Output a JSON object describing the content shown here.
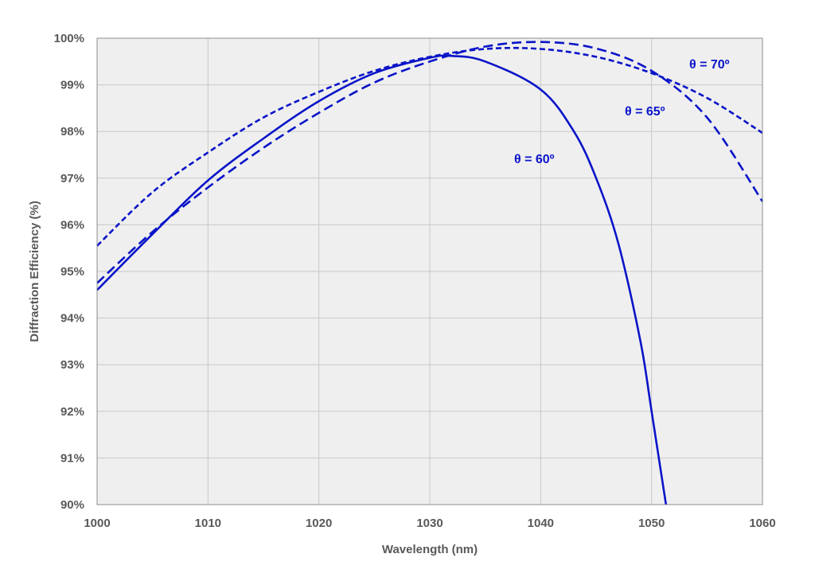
{
  "chart_data": {
    "type": "line",
    "xlabel": "Wavelength (nm)",
    "ylabel": "Diffraction Efficiency (%)",
    "xlim": [
      1000,
      1060
    ],
    "ylim": [
      90,
      100
    ],
    "x_ticks": [
      "1000",
      "1010",
      "1020",
      "1030",
      "1040",
      "1050",
      "1060"
    ],
    "y_ticks": [
      "90%",
      "91%",
      "92%",
      "93%",
      "94%",
      "95%",
      "96%",
      "97%",
      "98%",
      "99%",
      "100%"
    ],
    "grid": true,
    "legend": "none",
    "colors": {
      "series": "#0a14c8",
      "plot_bg": "#efefef",
      "grid": "#c8c8c8",
      "frame": "#8c8c8c"
    },
    "series": [
      {
        "name": "θ = 60º",
        "style": "solid",
        "x": [
          1000,
          1005,
          1010,
          1015,
          1020,
          1025,
          1030,
          1032,
          1035,
          1040,
          1043,
          1045,
          1047,
          1049,
          1050,
          1051.3
        ],
        "y": [
          94.6,
          95.8,
          96.95,
          97.85,
          98.65,
          99.25,
          99.58,
          99.62,
          99.5,
          98.9,
          98.0,
          97.0,
          95.6,
          93.5,
          92.0,
          90.0
        ]
      },
      {
        "name": "θ = 65º",
        "style": "dashed",
        "x": [
          1000,
          1005,
          1010,
          1015,
          1020,
          1025,
          1030,
          1035,
          1040,
          1045,
          1050,
          1055,
          1060
        ],
        "y": [
          94.75,
          95.85,
          96.8,
          97.65,
          98.4,
          99.05,
          99.5,
          99.82,
          99.92,
          99.78,
          99.3,
          98.3,
          96.5
        ]
      },
      {
        "name": "θ = 70º",
        "style": "dotted-dash",
        "x": [
          1000,
          1005,
          1010,
          1015,
          1020,
          1025,
          1030,
          1035,
          1040,
          1045,
          1050,
          1055,
          1060
        ],
        "y": [
          95.55,
          96.7,
          97.55,
          98.3,
          98.85,
          99.3,
          99.6,
          99.77,
          99.77,
          99.6,
          99.25,
          98.72,
          97.97
        ]
      }
    ],
    "annotations": [
      "θ = 70º",
      "θ = 65º",
      "θ = 60º"
    ]
  }
}
